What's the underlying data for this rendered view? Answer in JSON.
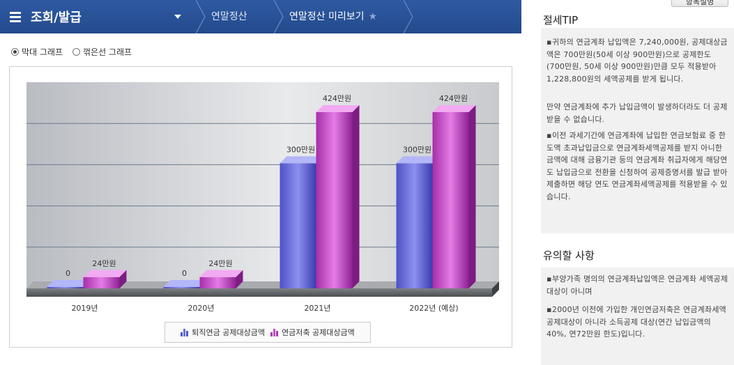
{
  "nav": {
    "title": "조회/발급",
    "crumbs": [
      "연말정산",
      "연말정산 미리보기"
    ]
  },
  "view_options": {
    "bar": "막대 그래프",
    "line": "꺾은선 그래프",
    "selected": "bar"
  },
  "chart_data": {
    "type": "bar",
    "categories": [
      "2019년",
      "2020년",
      "2021년",
      "2022년 (예상)"
    ],
    "series": [
      {
        "name": "퇴직연금 공제대상금액",
        "values": [
          0,
          0,
          300,
          300
        ],
        "labels": [
          "0",
          "0",
          "300만원",
          "300만원"
        ],
        "color": "#6b6fd6"
      },
      {
        "name": "연금저축 공제대상금액",
        "values": [
          24,
          24,
          424,
          424
        ],
        "labels": [
          "24만원",
          "24만원",
          "424만원",
          "424만원"
        ],
        "color": "#c24fc6"
      }
    ],
    "ylim": [
      0,
      500
    ],
    "grid": true,
    "legend_position": "bottom"
  },
  "side": {
    "top_button": "항목설명",
    "tip_title": "절세TIP",
    "tip_items": [
      "귀하의 연금계좌 납입액은 7,240,000원, 공제대상금액은 700만원(50세 이상 900만원)으로 공제한도(700만원, 50세 이상 900만원)만큼 모두 적용받아 1,228,800원의 세액공제를 받게 됩니다.",
      "만약 연금계좌에 추가 납입금액이 발생하더라도 더 공제 받을 수 없습니다.",
      "이전 과세기간에 연금계좌에 납입한 연금보험료 중 한도액 초과납입금으로 연금계좌세액공제를 받지 아니한 금액에 대해 금융기관 등의 연금계좌 취급자에게 해당연도 납입금으로 전환을 신청하여 공제증명서를 발급 받아 제출하면 해당 연도 연금계좌세액공제를 적용받을 수 있습니다."
    ],
    "note_title": "유의할 사항",
    "note_items": [
      "부양가족 명의의 연금계좌납입액은 연금계좌 세액공제 대상이 아니며",
      "2000년 이전에 가입한 개인연금저축은 연금계좌세액공제대상이 아니라 소득공제 대상(연간 납입금액의 40%, 연72만원 한도)입니다."
    ]
  },
  "colors": {
    "nav_bg": "#2a539a",
    "series1": "#6b6fd6",
    "series2": "#c24fc6"
  }
}
